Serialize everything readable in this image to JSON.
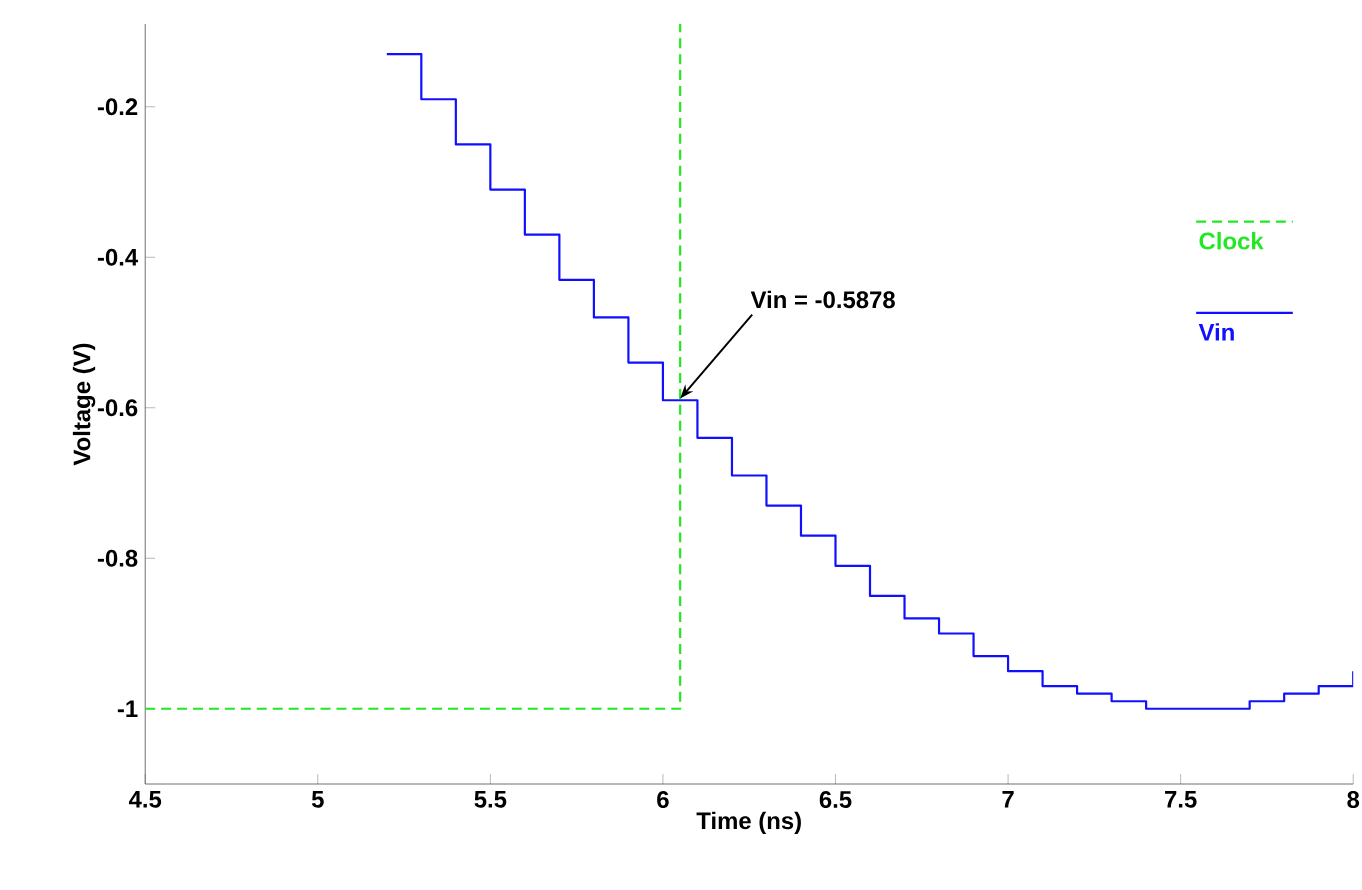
{
  "chart_data": {
    "type": "step",
    "xlabel": "Time (ns)",
    "ylabel": "Voltage (V)",
    "xlim": [
      4.5,
      8
    ],
    "ylim": [
      -1.1,
      -0.09
    ],
    "xticks": [
      4.5,
      5,
      5.5,
      6,
      6.5,
      7,
      7.5,
      8
    ],
    "yticks": [
      -1,
      -0.8,
      -0.6,
      -0.4,
      -0.2
    ],
    "legend": "right",
    "grid": false,
    "series": [
      {
        "name": "Clock",
        "color": "#22e822",
        "line_style": "dashed",
        "x": [
          4.5,
          6.05
        ],
        "values": [
          -1,
          -0.09
        ]
      },
      {
        "name": "Vin",
        "color": "#1010ff",
        "line_style": "solid",
        "x": [
          5.2,
          5.3,
          5.4,
          5.5,
          5.6,
          5.7,
          5.8,
          5.9,
          6.0,
          6.1,
          6.2,
          6.3,
          6.4,
          6.5,
          6.6,
          6.7,
          6.8,
          6.9,
          7.0,
          7.1,
          7.2,
          7.3,
          7.4,
          7.5,
          7.6,
          7.7,
          7.8,
          7.9,
          8.0
        ],
        "values": [
          -0.13,
          -0.19,
          -0.25,
          -0.31,
          -0.37,
          -0.43,
          -0.48,
          -0.54,
          -0.59,
          -0.64,
          -0.69,
          -0.73,
          -0.77,
          -0.81,
          -0.85,
          -0.88,
          -0.9,
          -0.93,
          -0.95,
          -0.97,
          -0.98,
          -0.99,
          -1.0,
          -1.0,
          -1.0,
          -0.99,
          -0.98,
          -0.97,
          -0.95
        ]
      }
    ],
    "annotations": [
      {
        "text": "Vin = -0.5878",
        "x": 6.05,
        "y": -0.5878
      }
    ]
  }
}
